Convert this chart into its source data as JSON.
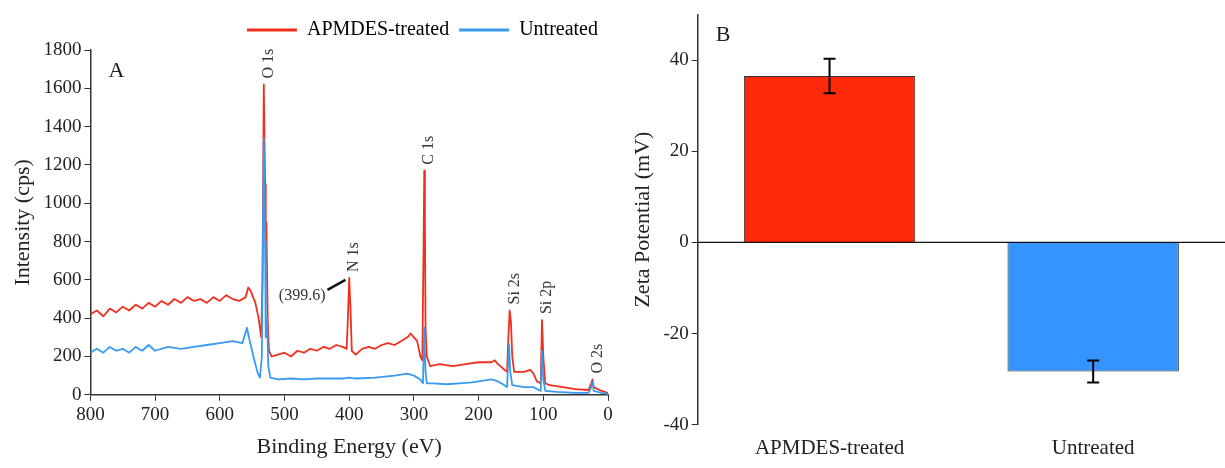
{
  "chart_data": [
    {
      "type": "line",
      "xlabel": "Binding Energy (eV)",
      "ylabel": "Intensity (cps)",
      "xlim": [
        800,
        0
      ],
      "xticks": [
        800,
        700,
        600,
        500,
        400,
        300,
        200,
        100,
        0
      ],
      "ylim": [
        0,
        1800
      ],
      "yticks": [
        0,
        200,
        400,
        600,
        800,
        1000,
        1200,
        1400,
        1600,
        1800
      ],
      "grid": false,
      "legend": "top right",
      "marker": "none",
      "line_style": "solid",
      "annotations": [
        "A",
        {
          "text": "O 1s",
          "x": 532,
          "y": 1620
        },
        {
          "text": "C 1s",
          "x": 284,
          "y": 1170
        },
        {
          "text": "N 1s",
          "x": 400,
          "y": 610
        },
        {
          "text": "(399.6)",
          "x": 399.6,
          "y": 610
        },
        {
          "text": "Si 2s",
          "x": 152,
          "y": 440
        },
        {
          "text": "Si 2p",
          "x": 102,
          "y": 390
        },
        {
          "text": "O 2s",
          "x": 24,
          "y": 80
        }
      ],
      "series": [
        {
          "name": "APMDES-treated",
          "color": "#f0301e",
          "x": [
            800,
            790,
            780,
            770,
            760,
            750,
            740,
            730,
            720,
            710,
            700,
            690,
            680,
            670,
            660,
            650,
            640,
            630,
            620,
            610,
            600,
            590,
            580,
            570,
            560,
            556,
            552,
            545,
            540,
            536,
            534,
            532,
            530,
            529,
            528,
            526,
            524,
            520,
            510,
            500,
            490,
            480,
            470,
            460,
            450,
            440,
            430,
            420,
            410,
            404,
            402,
            400,
            398,
            396,
            390,
            380,
            370,
            360,
            350,
            340,
            330,
            320,
            310,
            305,
            300,
            295,
            290,
            287,
            285,
            284,
            283,
            282,
            280,
            275,
            260,
            240,
            220,
            200,
            180,
            175,
            170,
            160,
            156,
            154,
            152,
            150,
            148,
            145,
            130,
            120,
            115,
            110,
            104,
            102,
            100,
            97,
            90,
            70,
            50,
            30,
            26,
            24,
            22,
            10,
            0
          ],
          "values": [
            420,
            440,
            410,
            450,
            430,
            460,
            440,
            470,
            450,
            480,
            460,
            490,
            470,
            500,
            480,
            510,
            490,
            500,
            480,
            510,
            490,
            520,
            500,
            490,
            510,
            560,
            540,
            480,
            400,
            300,
            600,
            1620,
            1100,
            700,
            900,
            400,
            230,
            200,
            210,
            220,
            200,
            230,
            220,
            240,
            230,
            250,
            240,
            260,
            250,
            240,
            400,
            610,
            450,
            230,
            210,
            240,
            250,
            240,
            260,
            270,
            260,
            280,
            300,
            320,
            300,
            280,
            200,
            180,
            800,
            1170,
            900,
            350,
            200,
            150,
            160,
            150,
            160,
            170,
            170,
            180,
            160,
            130,
            120,
            300,
            440,
            380,
            200,
            120,
            120,
            130,
            110,
            70,
            60,
            390,
            200,
            60,
            50,
            40,
            30,
            25,
            60,
            80,
            40,
            20,
            10
          ]
        },
        {
          "name": "Untreated",
          "color": "#3a9af0",
          "x": [
            800,
            790,
            780,
            770,
            760,
            750,
            740,
            730,
            720,
            710,
            700,
            680,
            660,
            640,
            620,
            600,
            580,
            565,
            558,
            555,
            548,
            542,
            538,
            535,
            532,
            530,
            529,
            527,
            525,
            522,
            510,
            490,
            470,
            450,
            430,
            410,
            400,
            390,
            360,
            330,
            310,
            300,
            290,
            286,
            284,
            282,
            280,
            270,
            250,
            230,
            210,
            180,
            170,
            160,
            156,
            153,
            151,
            148,
            130,
            115,
            110,
            104,
            102,
            100,
            97,
            80,
            50,
            30,
            26,
            24,
            22,
            10,
            0
          ],
          "values": [
            220,
            240,
            220,
            250,
            230,
            240,
            220,
            250,
            230,
            260,
            230,
            250,
            240,
            250,
            260,
            270,
            280,
            270,
            350,
            300,
            200,
            120,
            90,
            200,
            1340,
            800,
            300,
            400,
            150,
            90,
            80,
            85,
            80,
            85,
            85,
            85,
            90,
            85,
            90,
            100,
            110,
            100,
            80,
            60,
            350,
            120,
            60,
            60,
            55,
            60,
            65,
            80,
            70,
            50,
            40,
            260,
            120,
            50,
            40,
            40,
            30,
            20,
            230,
            80,
            20,
            15,
            10,
            10,
            40,
            70,
            20,
            10,
            5
          ]
        }
      ]
    },
    {
      "type": "bar",
      "ylabel": "Zeta Potential (mV)",
      "categories": [
        "APMDES-treated",
        "Untreated"
      ],
      "values": [
        36.5,
        -28.3
      ],
      "colors": [
        "#ff2a0a",
        "#3594ff"
      ],
      "errors": [
        3.8,
        2.4
      ],
      "ylim": [
        -40,
        50
      ],
      "yticks": [
        -40,
        -20,
        0,
        20,
        40
      ],
      "grid": false,
      "ref_lines": [
        {
          "axis": "y",
          "value": 0
        }
      ],
      "annotations": [
        "B"
      ]
    }
  ]
}
